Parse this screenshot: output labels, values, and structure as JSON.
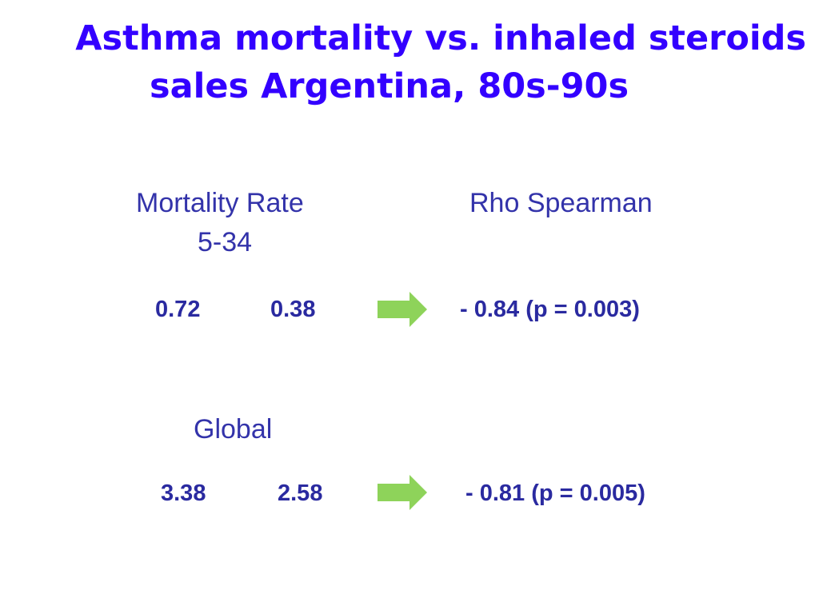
{
  "title": {
    "line1": "Asthma mortality vs. inhaled steroids",
    "line2": "sales  Argentina, 80s-90s"
  },
  "headers": {
    "mortality_rate": "Mortality Rate",
    "mortality_age": "5-34",
    "rho_spearman": "Rho Spearman",
    "global": "Global"
  },
  "rows": [
    {
      "value_a": "0.72",
      "value_b": "0.38",
      "result": "-  0.84  (p = 0.003)"
    },
    {
      "value_a": "3.38",
      "value_b": "2.58",
      "result": "-  0.81  (p = 0.005)"
    }
  ],
  "icons": {
    "arrow": "right-arrow-icon"
  },
  "colors": {
    "title": "#3300ff",
    "text": "#3333aa",
    "arrow": "#8ed35a"
  }
}
